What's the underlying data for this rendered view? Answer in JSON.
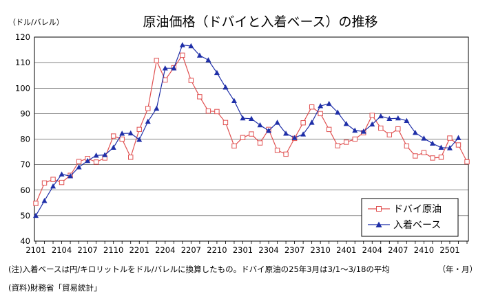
{
  "chart_data": {
    "type": "line",
    "title": "原油価格（ドバイと入着ベース）の推移",
    "ylabel": "（ドル/バレル）",
    "xlabel": "（年・月）",
    "ylim": [
      40,
      120
    ],
    "yticks": [
      40,
      50,
      60,
      70,
      80,
      90,
      100,
      110,
      120
    ],
    "xtick_labels": [
      "2101",
      "2104",
      "2107",
      "2110",
      "2201",
      "2204",
      "2207",
      "2210",
      "2301",
      "2304",
      "2307",
      "2310",
      "2401",
      "2404",
      "2407",
      "2410",
      "2501"
    ],
    "grid": "horizontal",
    "legend_position": "bottom-right",
    "series": [
      {
        "name": "ドバイ原油",
        "color": "#e05050",
        "marker": "square-open",
        "values": [
          54.8,
          62.8,
          64.2,
          63.0,
          65.8,
          71.2,
          72.4,
          71.0,
          72.6,
          81.2,
          80.0,
          72.9,
          83.8,
          92.0,
          110.8,
          103.2,
          108.0,
          112.9,
          103.0,
          96.6,
          91.0,
          90.8,
          86.5,
          77.3,
          80.6,
          82.0,
          78.5,
          83.8,
          75.6,
          74.1,
          80.3,
          86.4,
          92.6,
          90.0,
          83.8,
          77.4,
          78.8,
          80.0,
          82.5,
          89.3,
          84.3,
          81.7,
          84.0,
          77.3,
          73.4,
          74.7,
          72.6,
          72.9,
          80.4,
          77.7,
          71.1
        ]
      },
      {
        "name": "入着ベース",
        "color": "#1f2fa8",
        "marker": "triangle-filled",
        "values": [
          50.0,
          55.8,
          61.5,
          66.2,
          65.5,
          69.0,
          71.5,
          73.6,
          73.8,
          76.7,
          82.2,
          82.3,
          79.8,
          86.9,
          92.0,
          107.8,
          107.8,
          116.9,
          116.5,
          112.8,
          111.0,
          106.0,
          100.3,
          95.0,
          88.2,
          88.0,
          85.5,
          83.3,
          86.5,
          82.2,
          80.5,
          81.9,
          86.5,
          93.0,
          93.9,
          90.5,
          86.0,
          83.4,
          83.0,
          85.8,
          89.0,
          88.0,
          88.2,
          87.2,
          82.5,
          80.3,
          78.3,
          76.7,
          76.5,
          80.5,
          null
        ]
      }
    ]
  },
  "notes": {
    "note1": "(注)入着ベースは円/キロリットルをドル/バレルに換算したもの。ドバイ原油の25年3月は3/1～3/18の平均",
    "source": "(資料)財務省「貿易統計」"
  }
}
